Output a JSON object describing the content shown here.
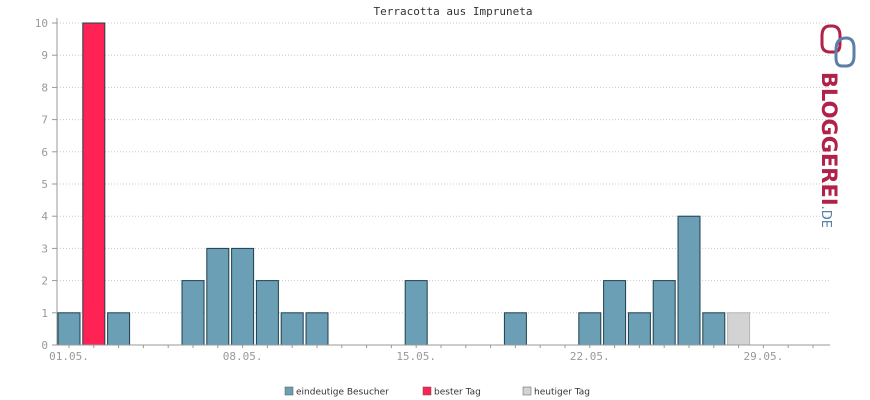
{
  "chart_data": {
    "type": "bar",
    "title": "Terracotta aus Impruneta",
    "ylim": [
      0,
      10
    ],
    "yticks": [
      0,
      1,
      2,
      3,
      4,
      5,
      6,
      7,
      8,
      9,
      10
    ],
    "x_tick_labels": [
      {
        "day": 1,
        "label": "01.05."
      },
      {
        "day": 8,
        "label": "08.05."
      },
      {
        "day": 15,
        "label": "15.05."
      },
      {
        "day": 22,
        "label": "22.05."
      },
      {
        "day": 29,
        "label": "29.05."
      }
    ],
    "grid": true,
    "days": [
      1,
      2,
      3,
      4,
      5,
      6,
      7,
      8,
      9,
      10,
      11,
      12,
      13,
      14,
      15,
      16,
      17,
      18,
      19,
      20,
      21,
      22,
      23,
      24,
      25,
      26,
      27,
      28,
      29,
      30,
      31
    ],
    "values": [
      1,
      10,
      1,
      0,
      0,
      2,
      3,
      3,
      2,
      1,
      1,
      0,
      0,
      0,
      2,
      0,
      0,
      0,
      1,
      0,
      0,
      1,
      2,
      1,
      2,
      4,
      1,
      1,
      0,
      0,
      0
    ],
    "best_day": 2,
    "today": 28,
    "legend_position": "bottom",
    "series": [
      {
        "name": "eindeutige Besucher",
        "color": "#6a9fb5"
      },
      {
        "name": "bester Tag",
        "color": "#ff2255"
      },
      {
        "name": "heutiger Tag",
        "color": "#d3d3d3"
      }
    ]
  },
  "logo": {
    "text_main": "BLOGGEREI",
    "text_suffix": ".DE",
    "color_main": "#b0224a",
    "color_suffix": "#5b7fa6"
  }
}
